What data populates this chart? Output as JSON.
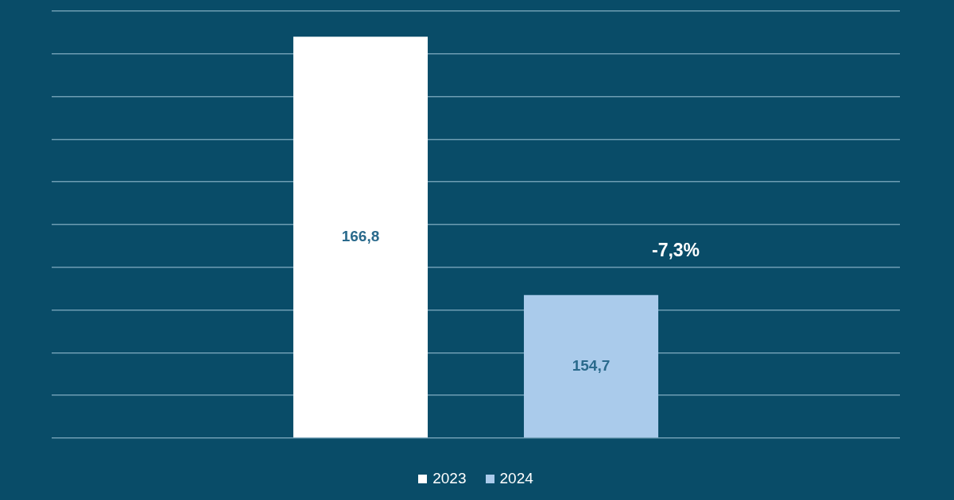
{
  "chart_data": {
    "type": "bar",
    "categories": [
      null
    ],
    "series": [
      {
        "name": "2023",
        "color": "#ffffff",
        "values": [
          166.8
        ],
        "value_labels": [
          "166,8"
        ]
      },
      {
        "name": "2024",
        "color": "#aacbeb",
        "values": [
          154.7
        ],
        "value_labels": [
          "154,7"
        ]
      }
    ],
    "ylim": [
      148,
      168
    ],
    "yticks": [
      {
        "value": 148,
        "label": null
      },
      {
        "value": 150,
        "label": null
      },
      {
        "value": 152,
        "label": null
      },
      {
        "value": 154,
        "label": null
      },
      {
        "value": 156,
        "label": null
      },
      {
        "value": 158,
        "label": null
      },
      {
        "value": 160,
        "label": null
      },
      {
        "value": 162,
        "label": null
      },
      {
        "value": 164,
        "label": null
      },
      {
        "value": 166,
        "label": null
      },
      {
        "value": 168,
        "label": null
      }
    ],
    "grid": "y",
    "legend": "bottom",
    "tick_labels": false,
    "annotations": [
      "-7,3%"
    ]
  }
}
